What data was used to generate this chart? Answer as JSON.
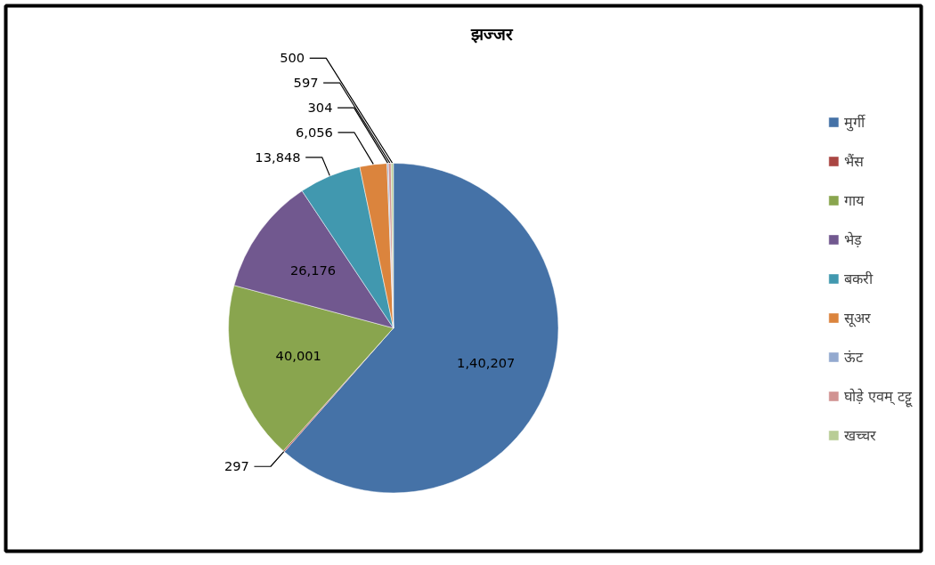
{
  "chart_data": {
    "type": "pie",
    "title": "झज्जर",
    "categories": [
      "मुर्गी",
      "भैंस",
      "गाय",
      "भेड़",
      "बकरी",
      "सूअर",
      "ऊंट",
      "घोड़े एवम् टट्टू",
      "खच्चर"
    ],
    "values": [
      140207,
      297,
      40001,
      26176,
      13848,
      6056,
      304,
      597,
      500
    ],
    "value_labels": [
      "1,40,207",
      "297",
      "40,001",
      "26,176",
      "13,848",
      "6,056",
      "304",
      "597",
      "500"
    ],
    "colors": [
      "#4572a7",
      "#aa4643",
      "#89a54e",
      "#71588f",
      "#4198af",
      "#db843d",
      "#93a9cf",
      "#d19392",
      "#b9cd96"
    ],
    "legend": "right"
  }
}
